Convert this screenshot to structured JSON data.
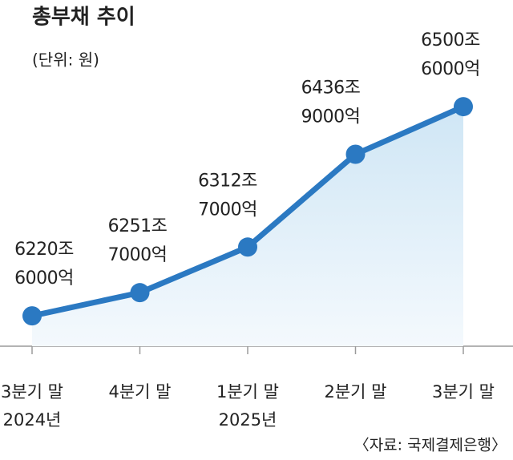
{
  "chart_data": {
    "type": "line",
    "title": "총부채 추이",
    "subtitle": "(단위: 원)",
    "source": "〈자료: 국제결제은행〉",
    "categories": [
      "3분기 말\n2024년",
      "4분기 말",
      "1분기 말\n2025년",
      "2분기 말",
      "3분기 말"
    ],
    "values": [
      6220600000000000,
      6251700000000000,
      6312700000000000,
      6436900000000000,
      6500600000000000
    ],
    "value_labels": [
      "6220조\n6000억",
      "6251조\n7000억",
      "6312조\n7000억",
      "6436조\n9000억",
      "6500조\n6000억"
    ],
    "color": "#2b79c2",
    "area": true,
    "ylim": [
      6180000000000000,
      6520000000000000
    ]
  }
}
